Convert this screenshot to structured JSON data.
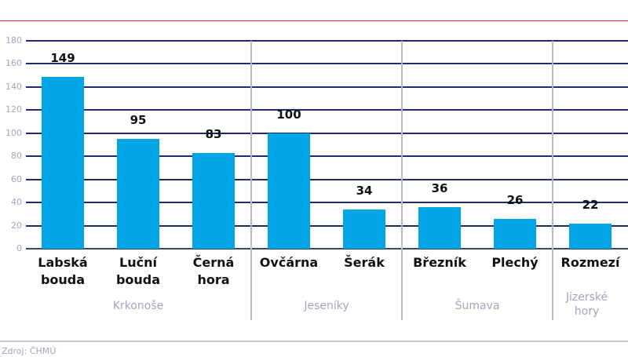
{
  "chart_data": {
    "type": "bar",
    "title": "",
    "xlabel": "",
    "ylabel": "",
    "ylim": [
      0,
      180
    ],
    "yticks": [
      0,
      20,
      40,
      60,
      80,
      100,
      120,
      140,
      160,
      180
    ],
    "grid": true,
    "legend": null,
    "categories": [
      "Labská bouda",
      "Luční bouda",
      "Černá hora",
      "Ovčárna",
      "Šerák",
      "Březník",
      "Plechý",
      "Rozmezí"
    ],
    "values": [
      149,
      95,
      83,
      100,
      34,
      36,
      26,
      22
    ],
    "groups": [
      {
        "name": "Krkonoše",
        "members": [
          "Labská bouda",
          "Luční bouda",
          "Černá hora"
        ]
      },
      {
        "name": "Jeseníky",
        "members": [
          "Ovčárna",
          "Šerák"
        ]
      },
      {
        "name": "Šumava",
        "members": [
          "Březník",
          "Plechý"
        ]
      },
      {
        "name": "Jizerské hory",
        "members": [
          "Rozmezí"
        ]
      }
    ],
    "bar_color": "#00a6e6"
  },
  "axis": {
    "ticks": [
      "0",
      "20",
      "40",
      "60",
      "80",
      "100",
      "120",
      "140",
      "160",
      "180"
    ]
  },
  "bars": [
    {
      "label_line1": "Labská",
      "label_line2": "bouda",
      "value": "149"
    },
    {
      "label_line1": "Luční",
      "label_line2": "bouda",
      "value": "95"
    },
    {
      "label_line1": "Černá",
      "label_line2": "hora",
      "value": "83"
    },
    {
      "label_line1": "Ovčárna",
      "label_line2": "",
      "value": "100"
    },
    {
      "label_line1": "Šerák",
      "label_line2": "",
      "value": "34"
    },
    {
      "label_line1": "Březník",
      "label_line2": "",
      "value": "36"
    },
    {
      "label_line1": "Plechý",
      "label_line2": "",
      "value": "26"
    },
    {
      "label_line1": "Rozmezí",
      "label_line2": "",
      "value": "22"
    }
  ],
  "groups": [
    {
      "label_line1": "Krkonoše",
      "label_line2": ""
    },
    {
      "label_line1": "Jeseníky",
      "label_line2": ""
    },
    {
      "label_line1": "Šumava",
      "label_line2": ""
    },
    {
      "label_line1": "Jizerské",
      "label_line2": "hory"
    }
  ],
  "footer": {
    "source": "Zdroj: ČHMÚ"
  },
  "colors": {
    "bar": "#00a6e6",
    "grid": "#1f2a6b",
    "top_rule": "#d9333f",
    "muted_text": "#a3a4bf"
  }
}
